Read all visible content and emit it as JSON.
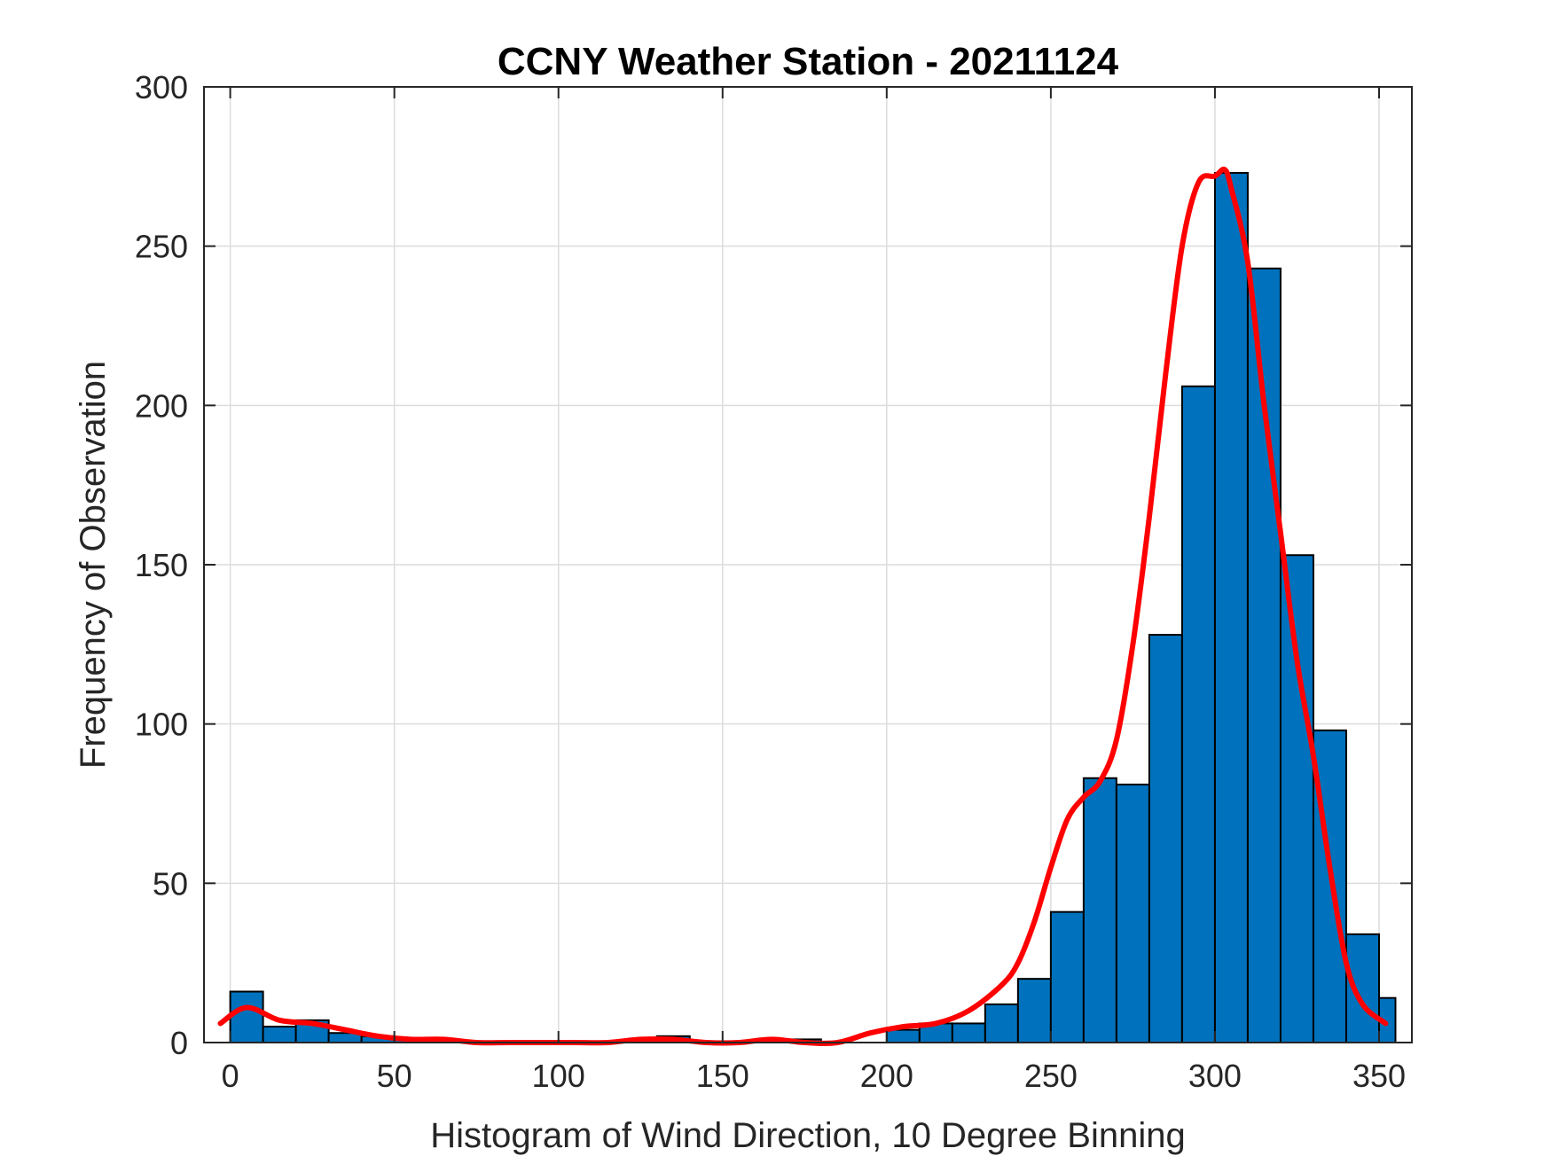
{
  "chart_data": {
    "type": "bar",
    "title": "CCNY Weather Station - 20211124",
    "xlabel": "Histogram of Wind Direction, 10 Degree Binning",
    "ylabel": "Frequency of Observation",
    "xlim": [
      -8,
      360
    ],
    "ylim": [
      0,
      300
    ],
    "xticks": [
      0,
      50,
      100,
      150,
      200,
      250,
      300,
      350
    ],
    "yticks": [
      0,
      50,
      100,
      150,
      200,
      250,
      300
    ],
    "grid": true,
    "bin_width": 10,
    "bin_edges": [
      0,
      10,
      20,
      30,
      40,
      50,
      60,
      70,
      80,
      90,
      100,
      110,
      120,
      130,
      140,
      150,
      160,
      170,
      180,
      190,
      200,
      210,
      220,
      230,
      240,
      250,
      260,
      270,
      280,
      290,
      300,
      310,
      320,
      330,
      340,
      350,
      355
    ],
    "values": [
      16,
      5,
      7,
      3,
      2,
      1,
      1,
      0,
      0,
      0,
      0,
      0,
      0,
      2,
      0,
      0,
      0,
      1,
      0,
      0,
      4,
      6,
      6,
      12,
      20,
      41,
      83,
      81,
      128,
      206,
      273,
      243,
      153,
      98,
      34,
      14
    ],
    "bar_color": "#0072BD",
    "bar_edge_color": "#000000",
    "series": [
      {
        "type": "line",
        "color": "#FF0000",
        "x": [
          -3,
          5,
          15,
          25,
          35,
          45,
          55,
          65,
          75,
          85,
          95,
          105,
          115,
          125,
          135,
          145,
          155,
          165,
          175,
          185,
          195,
          205,
          215,
          225,
          235,
          240,
          245,
          250,
          255,
          260,
          265,
          270,
          275,
          280,
          285,
          290,
          295,
          300,
          303,
          305,
          310,
          315,
          320,
          325,
          330,
          335,
          340,
          345,
          352
        ],
        "y": [
          6,
          11,
          7,
          6,
          4,
          2,
          1,
          1,
          0,
          0,
          0,
          0,
          0,
          1,
          1,
          0,
          0,
          1,
          0,
          0,
          3,
          5,
          6,
          10,
          18,
          25,
          38,
          55,
          70,
          77,
          82,
          95,
          125,
          165,
          210,
          250,
          270,
          272,
          274,
          268,
          245,
          200,
          160,
          120,
          90,
          55,
          25,
          12,
          6
        ]
      }
    ]
  }
}
